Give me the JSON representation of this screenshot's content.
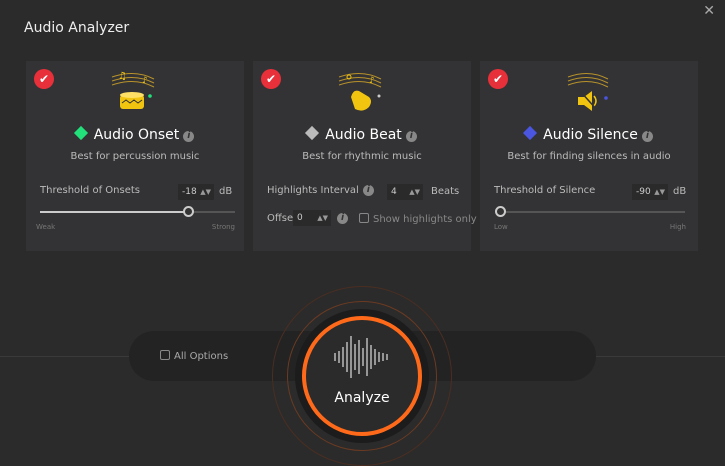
{
  "window": {
    "title": "Audio Analyzer",
    "close_icon": "close-icon"
  },
  "cards": [
    {
      "name": "Audio Onset",
      "color": "#22e07a",
      "desc": "Best for percussion music",
      "selected": true,
      "param_label": "Threshold of Onsets",
      "value": "-18",
      "unit": "dB",
      "slider_fraction": 0.76,
      "min_label": "Weak",
      "max_label": "Strong"
    },
    {
      "name": "Audio Beat",
      "color": "#bbbbbb",
      "desc": "Best for rhythmic music",
      "selected": true,
      "interval_label": "Highlights Interval",
      "interval_value": "4",
      "interval_unit": "Beats",
      "offset_label": "Offset",
      "offset_value": "0",
      "show_highlights_label": "Show highlights only",
      "show_highlights_checked": false
    },
    {
      "name": "Audio Silence",
      "color": "#4a55e0",
      "desc": "Best for finding silences in audio",
      "selected": true,
      "param_label": "Threshold of Silence",
      "value": "-90",
      "unit": "dB",
      "slider_fraction": 0,
      "min_label": "Low",
      "max_label": "High"
    }
  ],
  "footer": {
    "all_options_label": "All Options",
    "all_options_checked": false,
    "analyze_label": "Analyze",
    "accent": "#ff6a1a"
  }
}
